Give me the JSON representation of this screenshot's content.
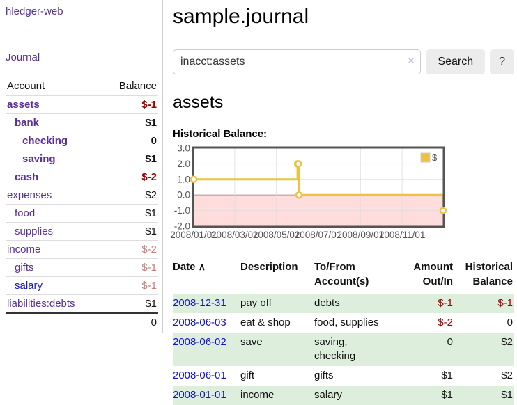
{
  "colors": {
    "link_purple": "#5b2d9e",
    "link_blue": "#1414cc",
    "negative": "#a40000",
    "negative_dim": "#c47f7f",
    "row_green": "#ddeedd",
    "series_yellow": "#edc240",
    "chart_border": "#545454",
    "grid_line": "#dddddd",
    "tick_label": "#545454"
  },
  "sidebar": {
    "app_title": "hledger-web",
    "nav": {
      "journal": "Journal"
    },
    "accounts": {
      "headers": {
        "account": "Account",
        "balance": "Balance"
      },
      "rows": [
        {
          "account": "assets",
          "balance": "$-1",
          "indent": 0,
          "bold": true,
          "balance_style": "negative",
          "link_style": "purple"
        },
        {
          "account": "bank",
          "balance": "$1",
          "indent": 1,
          "bold": true,
          "balance_style": "normal",
          "link_style": "purple"
        },
        {
          "account": "checking",
          "balance": "0",
          "indent": 2,
          "bold": true,
          "balance_style": "normal",
          "link_style": "purple"
        },
        {
          "account": "saving",
          "balance": "$1",
          "indent": 2,
          "bold": true,
          "balance_style": "normal",
          "link_style": "purple"
        },
        {
          "account": "cash",
          "balance": "$-2",
          "indent": 1,
          "bold": true,
          "balance_style": "negative",
          "link_style": "purple"
        },
        {
          "account": "expenses",
          "balance": "$2",
          "indent": 0,
          "bold": false,
          "balance_style": "normal",
          "link_style": "purple"
        },
        {
          "account": "food",
          "balance": "$1",
          "indent": 1,
          "bold": false,
          "balance_style": "normal",
          "link_style": "purple"
        },
        {
          "account": "supplies",
          "balance": "$1",
          "indent": 1,
          "bold": false,
          "balance_style": "normal",
          "link_style": "purple"
        },
        {
          "account": "income",
          "balance": "$-2",
          "indent": 0,
          "bold": false,
          "balance_style": "negative-dim",
          "link_style": "purple"
        },
        {
          "account": "gifts",
          "balance": "$-1",
          "indent": 1,
          "bold": false,
          "balance_style": "negative-dim",
          "link_style": "purple"
        },
        {
          "account": "salary",
          "balance": "$-1",
          "indent": 1,
          "bold": false,
          "balance_style": "negative-dim",
          "link_style": "blue"
        },
        {
          "account": "liabilities:debts",
          "balance": "$1",
          "indent": 0,
          "bold": false,
          "balance_style": "normal",
          "link_style": "purple"
        }
      ],
      "total": "0"
    }
  },
  "main": {
    "title": "sample.journal",
    "search": {
      "value": "inacct:assets",
      "clear_icon": "×",
      "search_label": "Search",
      "help_label": "?"
    },
    "account_heading": "assets",
    "chart_title": "Historical Balance:"
  },
  "chart_data": {
    "type": "line",
    "step": true,
    "title": "Historical Balance:",
    "legend": {
      "label": "$",
      "position": "top-right"
    },
    "series": [
      {
        "name": "$",
        "color": "#edc240",
        "points": [
          {
            "date": "2008-01-01",
            "value": 1
          },
          {
            "date": "2008-06-01",
            "value": 2
          },
          {
            "date": "2008-06-02",
            "value": 2
          },
          {
            "date": "2008-06-03",
            "value": 0
          },
          {
            "date": "2008-12-31",
            "value": -1
          }
        ]
      }
    ],
    "xrange": [
      "2008-01-01",
      "2008-12-31"
    ],
    "ylim": [
      -2,
      3
    ],
    "yticks": [
      "3.0",
      "2.0",
      "1.0",
      "0.0",
      "-1.0",
      "-2.0"
    ],
    "xticks": [
      "2008/01/01",
      "2008/03/01",
      "2008/05/01",
      "2008/07/01",
      "2008/09/01",
      "2008/11/01"
    ],
    "grid": true,
    "negative_region_fill": "#ffdddd",
    "zero_line_color": "#8f1a1a"
  },
  "register": {
    "headers": {
      "date": "Date",
      "sort_icon": "∧",
      "description": "Description",
      "accounts": "To/From Account(s)",
      "amount": "Amount Out/In",
      "balance": "Historical Balance"
    },
    "rows": [
      {
        "date": "2008-12-31",
        "description": "pay off",
        "accounts": "debts",
        "amount": "$-1",
        "balance": "$-1",
        "amount_negative": true,
        "balance_negative": true,
        "shaded": true
      },
      {
        "date": "2008-06-03",
        "description": "eat & shop",
        "accounts": "food, supplies",
        "amount": "$-2",
        "balance": "0",
        "amount_negative": true,
        "balance_negative": false,
        "shaded": false
      },
      {
        "date": "2008-06-02",
        "description": "save",
        "accounts": "saving, checking",
        "amount": "0",
        "balance": "$2",
        "amount_negative": false,
        "balance_negative": false,
        "shaded": true
      },
      {
        "date": "2008-06-01",
        "description": "gift",
        "accounts": "gifts",
        "amount": "$1",
        "balance": "$2",
        "amount_negative": false,
        "balance_negative": false,
        "shaded": false
      },
      {
        "date": "2008-01-01",
        "description": "income",
        "accounts": "salary",
        "amount": "$1",
        "balance": "$1",
        "amount_negative": false,
        "balance_negative": false,
        "shaded": true
      }
    ]
  }
}
